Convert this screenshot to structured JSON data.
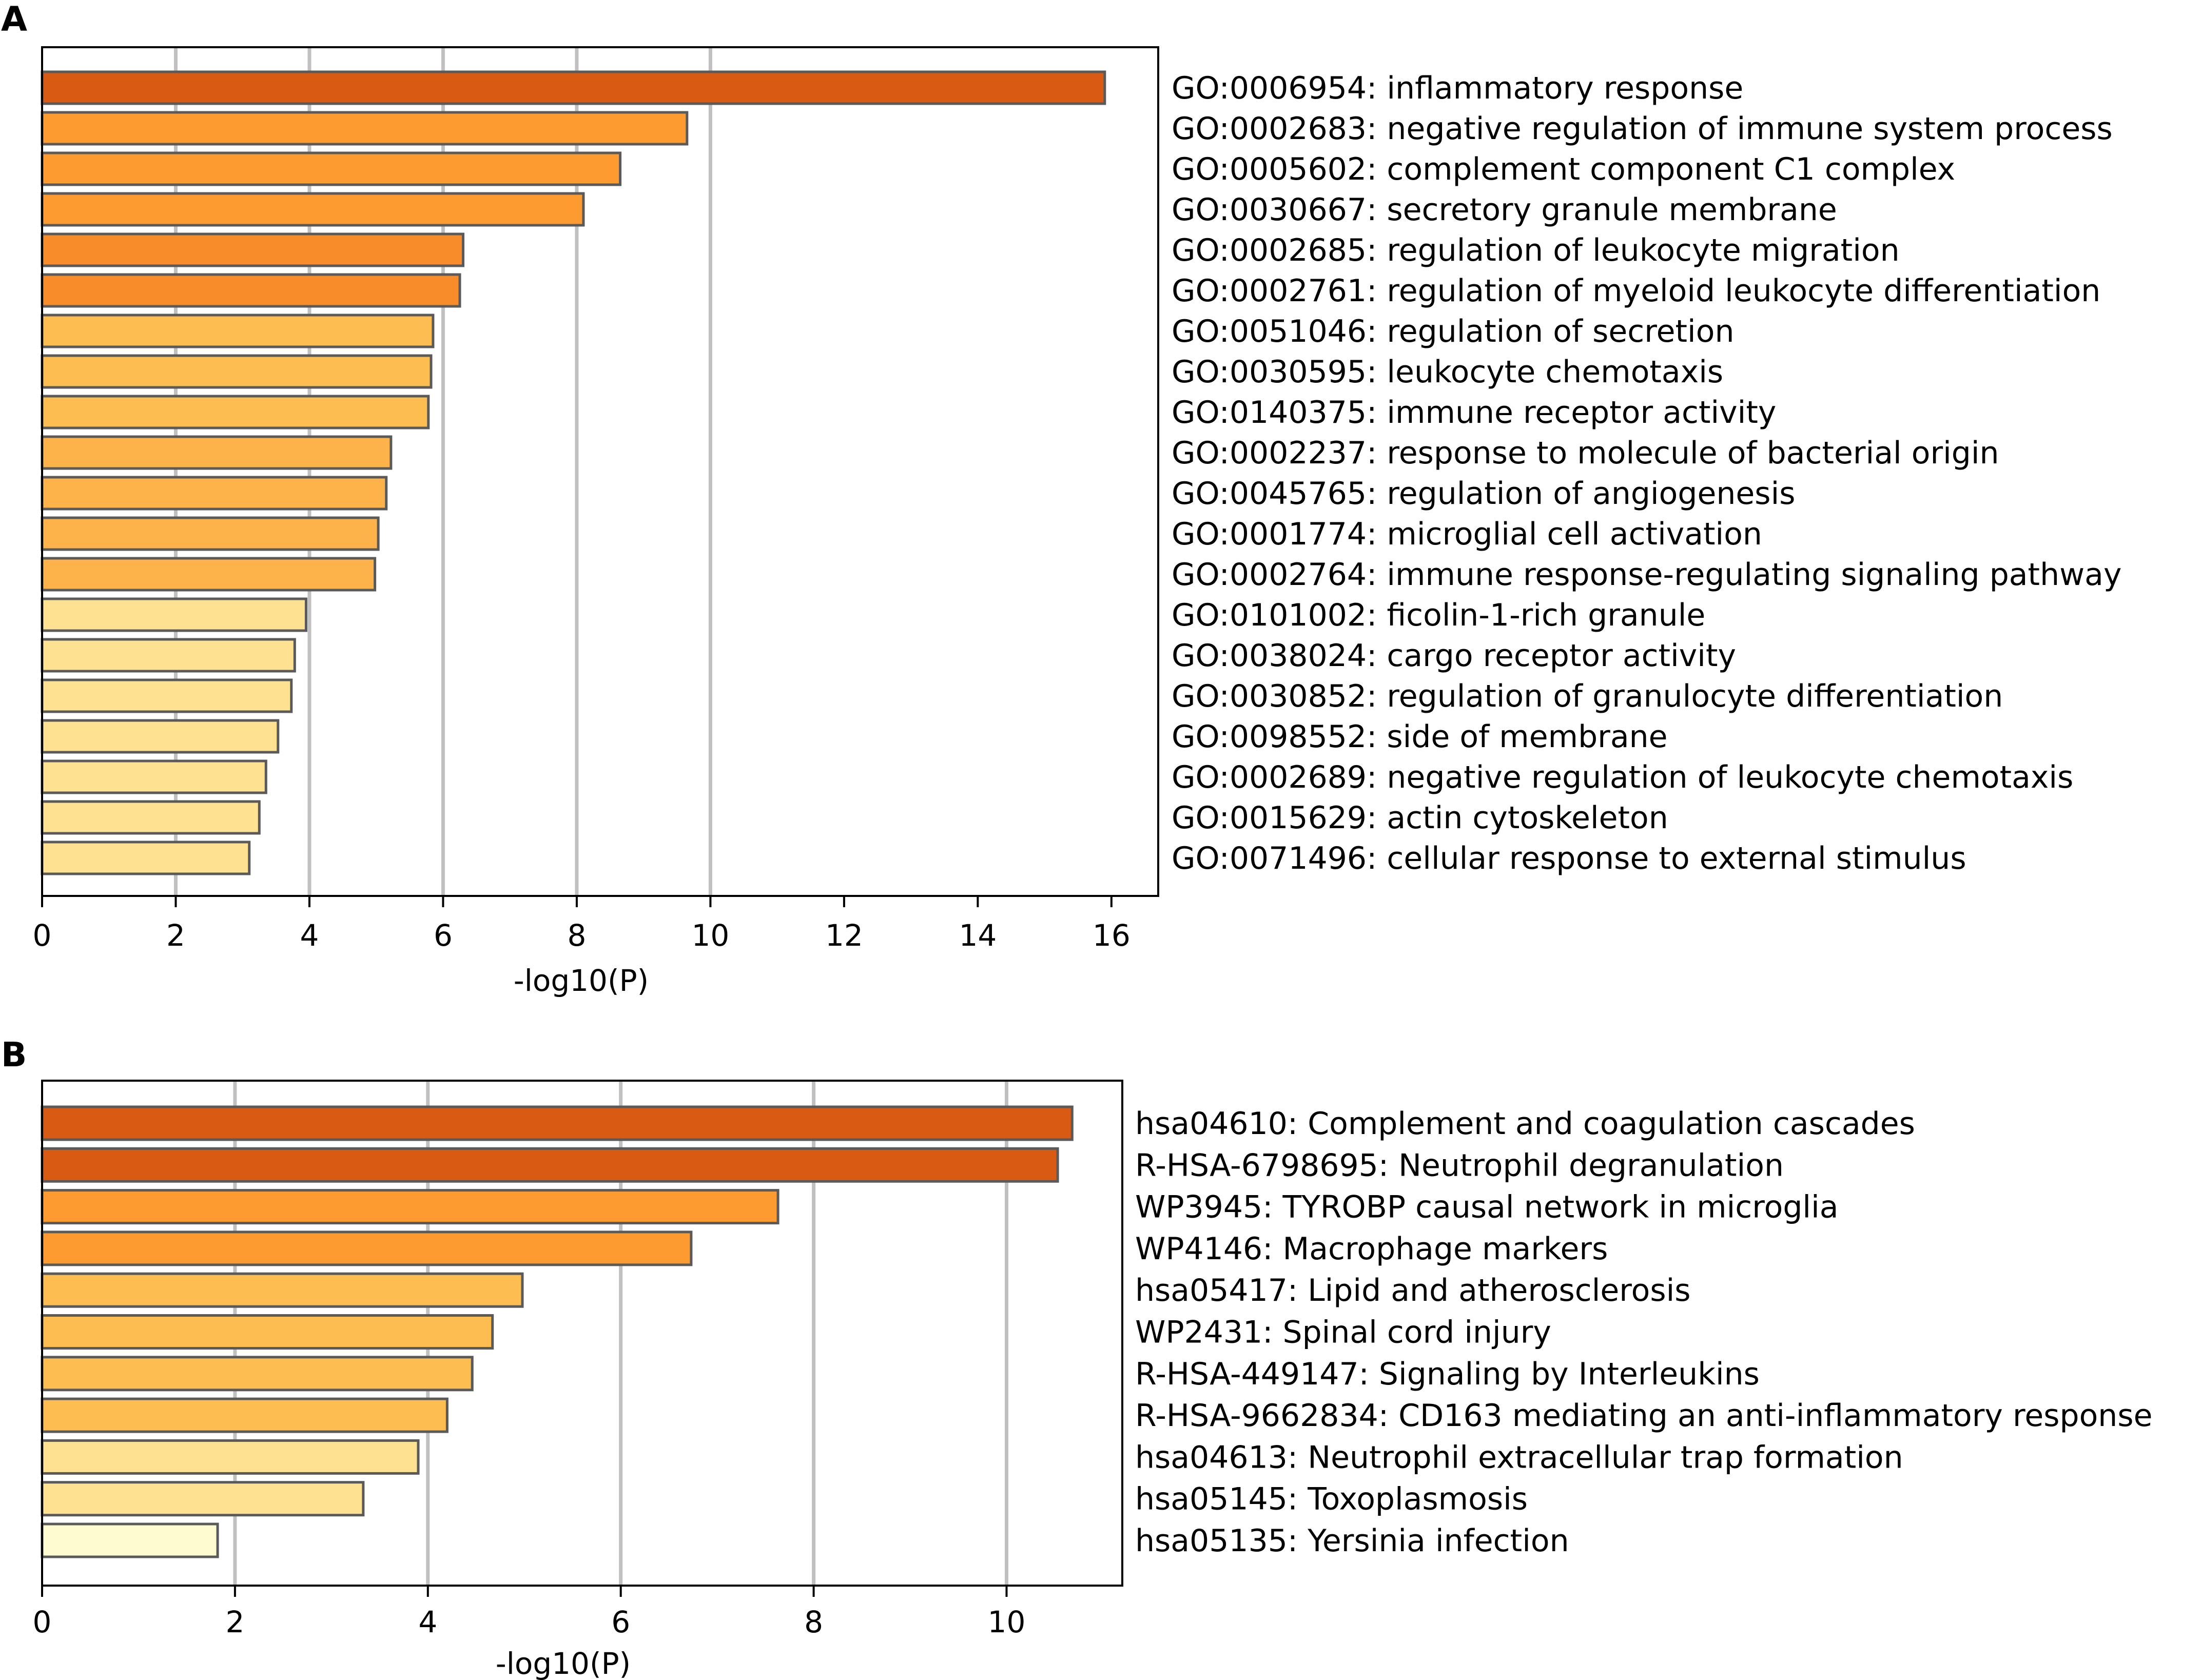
{
  "chart_data": [
    {
      "type": "bar",
      "orientation": "horizontal",
      "panel": "A",
      "xlabel": "-log10(P)",
      "xlim": [
        0,
        16.7
      ],
      "xticks": [
        0,
        2,
        4,
        6,
        8,
        10,
        12,
        14,
        16
      ],
      "gridlines": [
        2,
        4,
        6,
        8,
        10
      ],
      "categories": [
        "GO:0006954: inflammatory response",
        "GO:0002683: negative regulation of immune system process",
        "GO:0005602: complement component C1 complex",
        "GO:0030667: secretory granule membrane",
        "GO:0002685: regulation of leukocyte migration",
        "GO:0002761: regulation of myeloid leukocyte differentiation",
        "GO:0051046: regulation of secretion",
        "GO:0030595: leukocyte chemotaxis",
        "GO:0140375: immune receptor activity",
        "GO:0002237: response to molecule of bacterial origin",
        "GO:0045765: regulation of angiogenesis",
        "GO:0001774: microglial cell activation",
        "GO:0002764: immune response-regulating signaling pathway",
        "GO:0101002: ficolin-1-rich granule",
        "GO:0038024: cargo receptor activity",
        "GO:0030852: regulation of granulocyte differentiation",
        "GO:0098552: side of membrane",
        "GO:0002689: negative regulation of leukocyte chemotaxis",
        "GO:0015629: actin cytoskeleton",
        "GO:0071496: cellular response to external stimulus"
      ],
      "values": [
        15.9,
        9.65,
        8.65,
        8.1,
        6.3,
        6.25,
        5.85,
        5.82,
        5.78,
        5.22,
        5.15,
        5.03,
        4.98,
        3.95,
        3.78,
        3.73,
        3.53,
        3.35,
        3.25,
        3.1
      ],
      "colors": [
        "#d95a12",
        "#fd9a30",
        "#fd9a30",
        "#fd9a30",
        "#f98c2a",
        "#f98c2a",
        "#fdbd50",
        "#fdbd50",
        "#fdbd50",
        "#fdb34a",
        "#fdb34a",
        "#fdb34a",
        "#fdb34a",
        "#fee191",
        "#fee191",
        "#fee191",
        "#fee191",
        "#fee191",
        "#fee191",
        "#fee191"
      ]
    },
    {
      "type": "bar",
      "orientation": "horizontal",
      "panel": "B",
      "xlabel": "-log10(P)",
      "xlim": [
        0,
        11.2
      ],
      "xticks": [
        0,
        2,
        4,
        6,
        8,
        10
      ],
      "gridlines": [
        2,
        4,
        6,
        8,
        10
      ],
      "categories": [
        "hsa04610: Complement and coagulation cascades",
        "R-HSA-6798695: Neutrophil degranulation",
        "WP3945: TYROBP causal network in microglia",
        "WP4146: Macrophage markers",
        "hsa05417: Lipid and atherosclerosis",
        "WP2431: Spinal cord injury",
        "R-HSA-449147: Signaling by Interleukins",
        "R-HSA-9662834: CD163 mediating an anti-inflammatory response",
        "hsa04613: Neutrophil extracellular trap formation",
        "hsa05145: Toxoplasmosis",
        "hsa05135: Yersinia infection"
      ],
      "values": [
        10.68,
        10.53,
        7.63,
        6.73,
        4.98,
        4.67,
        4.46,
        4.2,
        3.9,
        3.33,
        1.82
      ],
      "colors": [
        "#d95a12",
        "#d95a12",
        "#fd9a30",
        "#fd9a30",
        "#fdbd50",
        "#fdbd50",
        "#fdbd50",
        "#fdbd50",
        "#fee191",
        "#fee191",
        "#fffbd1"
      ]
    }
  ]
}
